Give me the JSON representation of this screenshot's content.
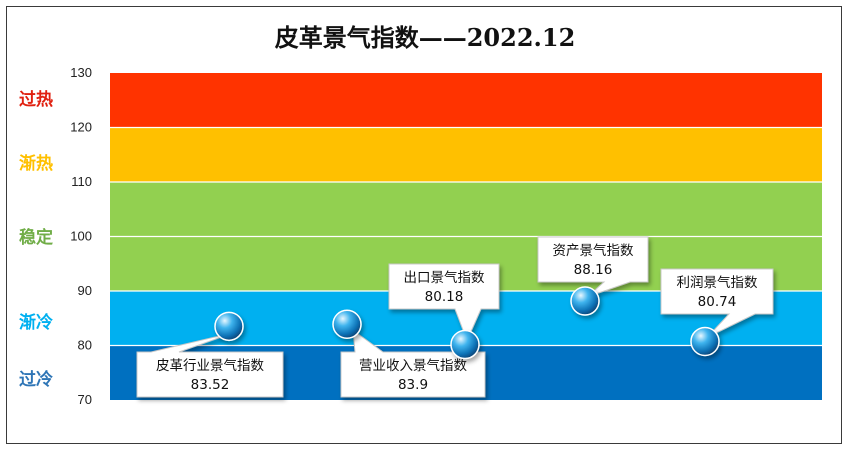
{
  "chart_data": {
    "type": "scatter",
    "title": "皮革景气指数——2022.12",
    "ylim": [
      70,
      130
    ],
    "yticks": [
      70,
      80,
      90,
      100,
      110,
      120,
      130
    ],
    "bands": [
      {
        "label": "过冷",
        "from": 70,
        "to": 80,
        "color": "#0070c0",
        "label_color": "#2e75b6"
      },
      {
        "label": "渐冷",
        "from": 80,
        "to": 90,
        "color": "#00b0f0",
        "label_color": "#00b0f0"
      },
      {
        "label": "稳定",
        "from": 90,
        "to": 110,
        "color": "#92d050",
        "label_color": "#70ad47"
      },
      {
        "label": "渐热",
        "from": 110,
        "to": 120,
        "color": "#ffc000",
        "label_color": "#ffc000"
      },
      {
        "label": "过热",
        "from": 120,
        "to": 130,
        "color": "#ff3300",
        "label_color": "#e02010"
      }
    ],
    "points": [
      {
        "name": "皮革行业景气指数",
        "value": 83.52,
        "value_label": "83.52"
      },
      {
        "name": "营业收入景气指数",
        "value": 83.9,
        "value_label": "83.9"
      },
      {
        "name": "出口景气指数",
        "value": 80.18,
        "value_label": "80.18"
      },
      {
        "name": "资产景气指数",
        "value": 88.16,
        "value_label": "88.16"
      },
      {
        "name": "利润景气指数",
        "value": 80.74,
        "value_label": "80.74"
      }
    ]
  }
}
